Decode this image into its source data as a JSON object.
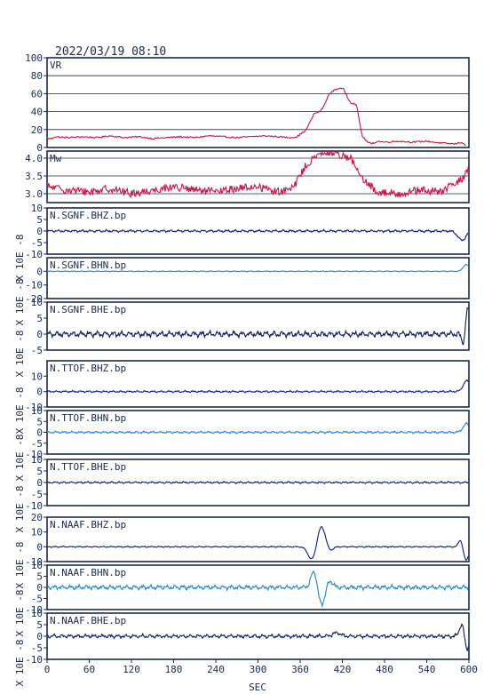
{
  "header": {
    "timestamp": "2022/03/19  08:10"
  },
  "colors": {
    "frame": "#1a2a4a",
    "grid": "#1a2a4a",
    "text": "#1a2a4a",
    "vr_trace": "#cc1144",
    "mw_trace": "#cc1144",
    "bhz_trace": "#0a1a8a",
    "bhn_trace": "#1e88cc",
    "bhe_trace": "#0a1a6a",
    "background": "#ffffff"
  },
  "chart_data": {
    "type": "line",
    "xlabel": "SEC",
    "xlim": [
      0,
      600
    ],
    "xticks": [
      0,
      60,
      120,
      180,
      240,
      300,
      360,
      420,
      480,
      540,
      600
    ],
    "panels": [
      {
        "id": "vr",
        "label": "VR",
        "ylabel": "",
        "ylim": [
          0,
          100
        ],
        "yticks": [
          0,
          20,
          40,
          60,
          80,
          100
        ],
        "grid": true,
        "color_key": "vr_trace",
        "kind": "step",
        "points": [
          [
            0,
            10
          ],
          [
            8,
            10
          ],
          [
            10,
            12
          ],
          [
            30,
            11
          ],
          [
            50,
            12
          ],
          [
            70,
            11
          ],
          [
            90,
            13
          ],
          [
            110,
            11
          ],
          [
            130,
            12
          ],
          [
            150,
            10
          ],
          [
            170,
            11
          ],
          [
            190,
            12
          ],
          [
            210,
            11
          ],
          [
            230,
            13
          ],
          [
            250,
            12
          ],
          [
            270,
            11
          ],
          [
            290,
            12
          ],
          [
            310,
            13
          ],
          [
            330,
            12
          ],
          [
            345,
            11
          ],
          [
            355,
            12
          ],
          [
            368,
            19
          ],
          [
            375,
            30
          ],
          [
            380,
            38
          ],
          [
            388,
            40
          ],
          [
            393,
            45
          ],
          [
            400,
            58
          ],
          [
            408,
            64
          ],
          [
            415,
            66
          ],
          [
            422,
            65
          ],
          [
            428,
            55
          ],
          [
            432,
            50
          ],
          [
            440,
            48
          ],
          [
            448,
            13
          ],
          [
            456,
            6
          ],
          [
            462,
            4
          ],
          [
            470,
            7
          ],
          [
            480,
            6
          ],
          [
            500,
            7
          ],
          [
            520,
            6
          ],
          [
            540,
            7
          ],
          [
            560,
            5
          ],
          [
            580,
            4
          ],
          [
            590,
            6
          ],
          [
            596,
            2
          ]
        ]
      },
      {
        "id": "mw",
        "label": "Mw",
        "ylabel": "",
        "ylim": [
          2.75,
          4.2
        ],
        "yticks": [
          3.0,
          3.5,
          4.0
        ],
        "ytick_labels": [
          "3.0",
          "3.5",
          "4.0"
        ],
        "grid": true,
        "color_key": "mw_trace",
        "kind": "noisy",
        "points": [
          [
            0,
            3.2
          ],
          [
            30,
            3.1
          ],
          [
            60,
            3.05
          ],
          [
            90,
            3.15
          ],
          [
            120,
            3.0
          ],
          [
            150,
            3.1
          ],
          [
            180,
            3.2
          ],
          [
            210,
            3.1
          ],
          [
            240,
            3.05
          ],
          [
            270,
            3.15
          ],
          [
            300,
            3.2
          ],
          [
            330,
            3.05
          ],
          [
            350,
            3.15
          ],
          [
            368,
            3.8
          ],
          [
            390,
            4.15
          ],
          [
            410,
            4.15
          ],
          [
            432,
            4.0
          ],
          [
            448,
            3.4
          ],
          [
            470,
            3.05
          ],
          [
            500,
            3.0
          ],
          [
            530,
            3.1
          ],
          [
            560,
            3.05
          ],
          [
            590,
            3.4
          ],
          [
            600,
            3.75
          ]
        ]
      },
      {
        "id": "sgnf_bhz",
        "label": "N.SGNF.BHZ.bp",
        "ylabel": "X 10E -8",
        "ylim": [
          -10,
          10
        ],
        "yticks": [
          -10,
          -5,
          0,
          5,
          10
        ],
        "grid": false,
        "color_key": "bhz_trace",
        "kind": "wave",
        "noise": 0.5,
        "events": [
          {
            "t": 590,
            "amp": -4.0,
            "width": 8
          }
        ]
      },
      {
        "id": "sgnf_bhn",
        "label": "N.SGNF.BHN.bp",
        "ylabel": "X 10E -8",
        "ylim": [
          -20,
          10
        ],
        "yticks": [
          -20,
          -10,
          0
        ],
        "grid": false,
        "color_key": "bhn_trace",
        "kind": "wave",
        "noise": 0.3,
        "events": [
          {
            "t": 596,
            "amp": 5.0,
            "width": 6
          }
        ]
      },
      {
        "id": "sgnf_bhe",
        "label": "N.SGNF.BHE.bp",
        "ylabel": "X 10E -8",
        "ylim": [
          -5,
          10
        ],
        "yticks": [
          -5,
          0,
          5,
          10
        ],
        "grid": false,
        "color_key": "bhe_trace",
        "kind": "wave",
        "noise": 0.9,
        "events": [
          {
            "t": 593,
            "amp": -3.5,
            "width": 4
          },
          {
            "t": 598,
            "amp": 8.5,
            "width": 4
          }
        ]
      },
      {
        "id": "ttof_bhz",
        "label": "N.TTOF.BHZ.bp",
        "ylabel": "X 10E -8",
        "ylim": [
          -10,
          20
        ],
        "yticks": [
          -10,
          0,
          10
        ],
        "grid": false,
        "color_key": "bhz_trace",
        "kind": "wave",
        "noise": 0.6,
        "events": [
          {
            "t": 597,
            "amp": 7.0,
            "width": 7
          }
        ]
      },
      {
        "id": "ttof_bhn",
        "label": "N.TTOF.BHN.bp",
        "ylabel": "X 10E -8",
        "ylim": [
          -10,
          10
        ],
        "yticks": [
          -10,
          -5,
          0,
          5,
          10
        ],
        "grid": false,
        "color_key": "bhn_trace",
        "kind": "wave",
        "noise": 0.5,
        "events": [
          {
            "t": 597,
            "amp": 4.0,
            "width": 7
          }
        ]
      },
      {
        "id": "ttof_bhe",
        "label": "N.TTOF.BHE.bp",
        "ylabel": "X 10E -8",
        "ylim": [
          -10,
          10
        ],
        "yticks": [
          -10,
          -5,
          0,
          5,
          10
        ],
        "grid": false,
        "color_key": "bhe_trace",
        "kind": "wave",
        "noise": 0.4,
        "events": []
      },
      {
        "id": "naaf_bhz",
        "label": "N.NAAF.BHZ.bp",
        "ylabel": "X 10E -8",
        "ylim": [
          -10,
          20
        ],
        "yticks": [
          -10,
          0,
          10,
          20
        ],
        "grid": false,
        "color_key": "bhz_trace",
        "kind": "wave",
        "noise": 0.4,
        "events": [
          {
            "t": 377,
            "amp": -9.0,
            "width": 8
          },
          {
            "t": 390,
            "amp": 14.0,
            "width": 8
          },
          {
            "t": 402,
            "amp": -3.0,
            "width": 6
          },
          {
            "t": 588,
            "amp": 5.0,
            "width": 4
          },
          {
            "t": 596,
            "amp": -9.0,
            "width": 5
          }
        ]
      },
      {
        "id": "naaf_bhn",
        "label": "N.NAAF.BHN.bp",
        "ylabel": "X 10E -8",
        "ylim": [
          -10,
          10
        ],
        "yticks": [
          -10,
          -5,
          0,
          5,
          10
        ],
        "grid": false,
        "color_key": "bhn_trace",
        "kind": "wave",
        "noise": 1.0,
        "events": [
          {
            "t": 380,
            "amp": 8.0,
            "width": 6
          },
          {
            "t": 390,
            "amp": -8.0,
            "width": 7
          },
          {
            "t": 402,
            "amp": 3.0,
            "width": 6
          }
        ]
      },
      {
        "id": "naaf_bhe",
        "label": "N.NAAF.BHE.bp",
        "ylabel": "X 10E -8",
        "ylim": [
          -10,
          10
        ],
        "yticks": [
          -10,
          -5,
          0,
          5,
          10
        ],
        "grid": false,
        "color_key": "bhe_trace",
        "kind": "wave",
        "noise": 0.8,
        "events": [
          {
            "t": 412,
            "amp": 1.5,
            "width": 8
          },
          {
            "t": 590,
            "amp": 5.0,
            "width": 5
          },
          {
            "t": 597,
            "amp": -6.0,
            "width": 4
          }
        ]
      }
    ]
  }
}
